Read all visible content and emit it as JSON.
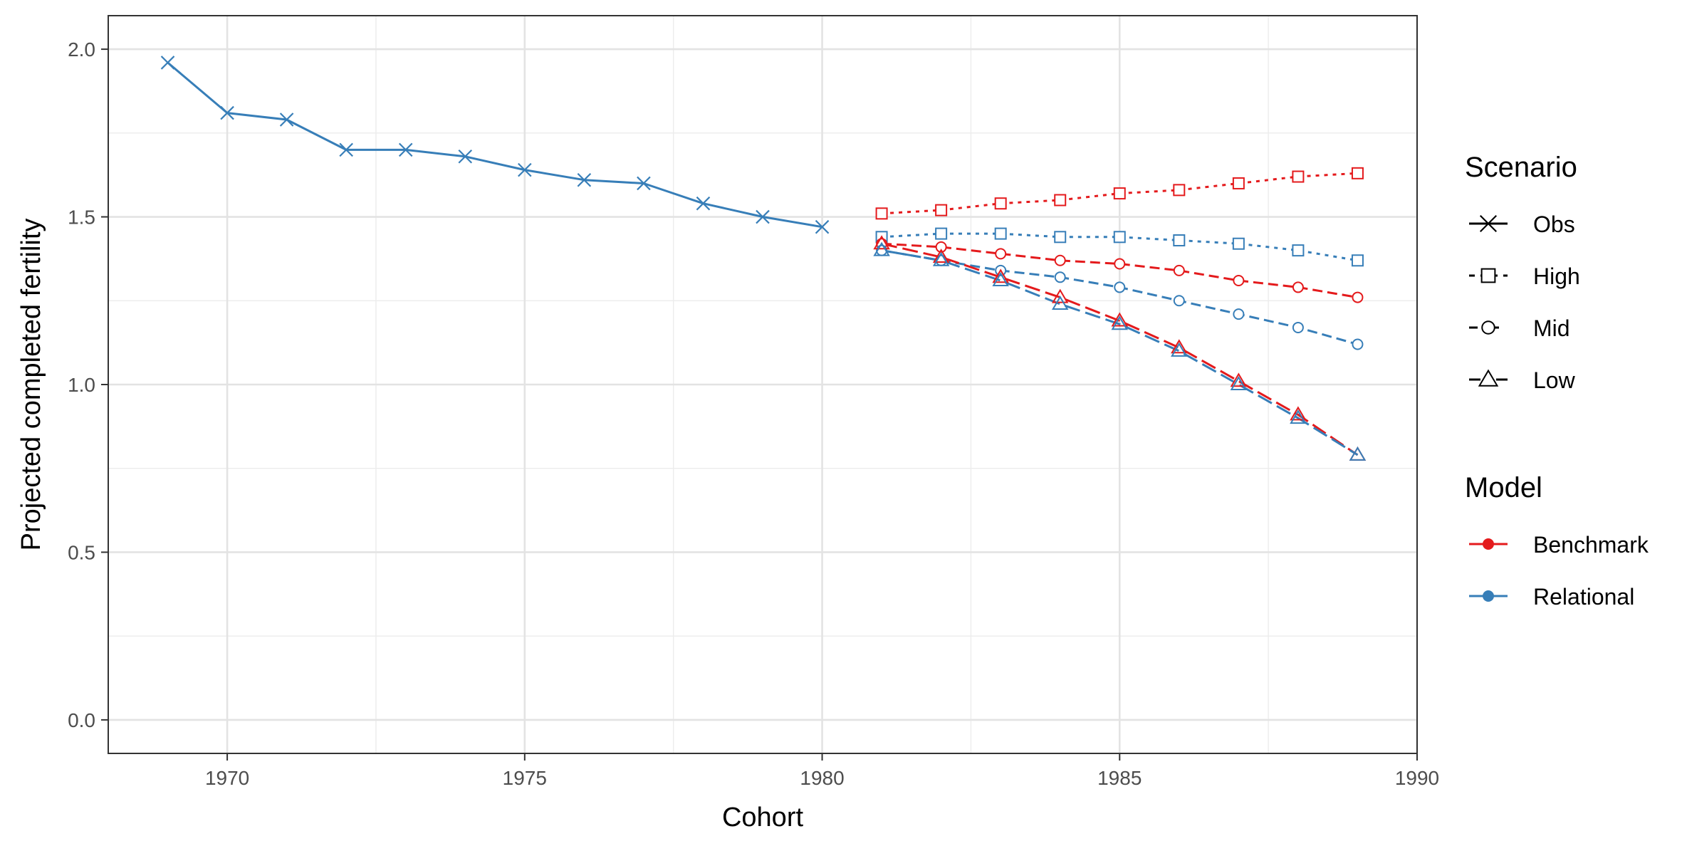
{
  "chart_data": {
    "type": "line",
    "xlabel": "Cohort",
    "ylabel": "Projected completed fertility",
    "xlim": [
      1968,
      1990
    ],
    "ylim": [
      -0.1,
      2.1
    ],
    "x_ticks": [
      1970,
      1975,
      1980,
      1985,
      1990
    ],
    "y_ticks": [
      0.0,
      0.5,
      1.0,
      1.5,
      2.0
    ],
    "y_tick_labels": [
      "0.0",
      "0.5",
      "1.0",
      "1.5",
      "2.0"
    ],
    "grid": true,
    "legend_position": "right",
    "colors": {
      "Benchmark": "#e41a1c",
      "Relational": "#377eb8"
    },
    "legend": {
      "scenario": {
        "title": "Scenario",
        "entries": [
          "Obs",
          "High",
          "Mid",
          "Low"
        ]
      },
      "model": {
        "title": "Model",
        "entries": [
          "Benchmark",
          "Relational"
        ]
      }
    },
    "series": [
      {
        "scenario": "Obs",
        "model": "Relational",
        "x": [
          1969,
          1970,
          1971,
          1972,
          1973,
          1974,
          1975,
          1976,
          1977,
          1978,
          1979,
          1980
        ],
        "y": [
          1.96,
          1.81,
          1.79,
          1.7,
          1.7,
          1.68,
          1.64,
          1.61,
          1.6,
          1.54,
          1.5,
          1.47
        ]
      },
      {
        "scenario": "High",
        "model": "Benchmark",
        "x": [
          1981,
          1982,
          1983,
          1984,
          1985,
          1986,
          1987,
          1988,
          1989
        ],
        "y": [
          1.51,
          1.52,
          1.54,
          1.55,
          1.57,
          1.58,
          1.6,
          1.62,
          1.63
        ]
      },
      {
        "scenario": "High",
        "model": "Relational",
        "x": [
          1981,
          1982,
          1983,
          1984,
          1985,
          1986,
          1987,
          1988,
          1989
        ],
        "y": [
          1.44,
          1.45,
          1.45,
          1.44,
          1.44,
          1.43,
          1.42,
          1.4,
          1.37
        ]
      },
      {
        "scenario": "Mid",
        "model": "Benchmark",
        "x": [
          1981,
          1982,
          1983,
          1984,
          1985,
          1986,
          1987,
          1988,
          1989
        ],
        "y": [
          1.42,
          1.41,
          1.39,
          1.37,
          1.36,
          1.34,
          1.31,
          1.29,
          1.26
        ]
      },
      {
        "scenario": "Mid",
        "model": "Relational",
        "x": [
          1981,
          1982,
          1983,
          1984,
          1985,
          1986,
          1987,
          1988,
          1989
        ],
        "y": [
          1.4,
          1.37,
          1.34,
          1.32,
          1.29,
          1.25,
          1.21,
          1.17,
          1.12
        ]
      },
      {
        "scenario": "Low",
        "model": "Benchmark",
        "x": [
          1981,
          1982,
          1983,
          1984,
          1985,
          1986,
          1987,
          1988,
          1989
        ],
        "y": [
          1.42,
          1.38,
          1.32,
          1.26,
          1.19,
          1.11,
          1.01,
          0.91,
          0.79
        ]
      },
      {
        "scenario": "Low",
        "model": "Relational",
        "x": [
          1981,
          1982,
          1983,
          1984,
          1985,
          1986,
          1987,
          1988,
          1989
        ],
        "y": [
          1.4,
          1.37,
          1.31,
          1.24,
          1.18,
          1.1,
          1.0,
          0.9,
          0.79
        ]
      }
    ]
  }
}
